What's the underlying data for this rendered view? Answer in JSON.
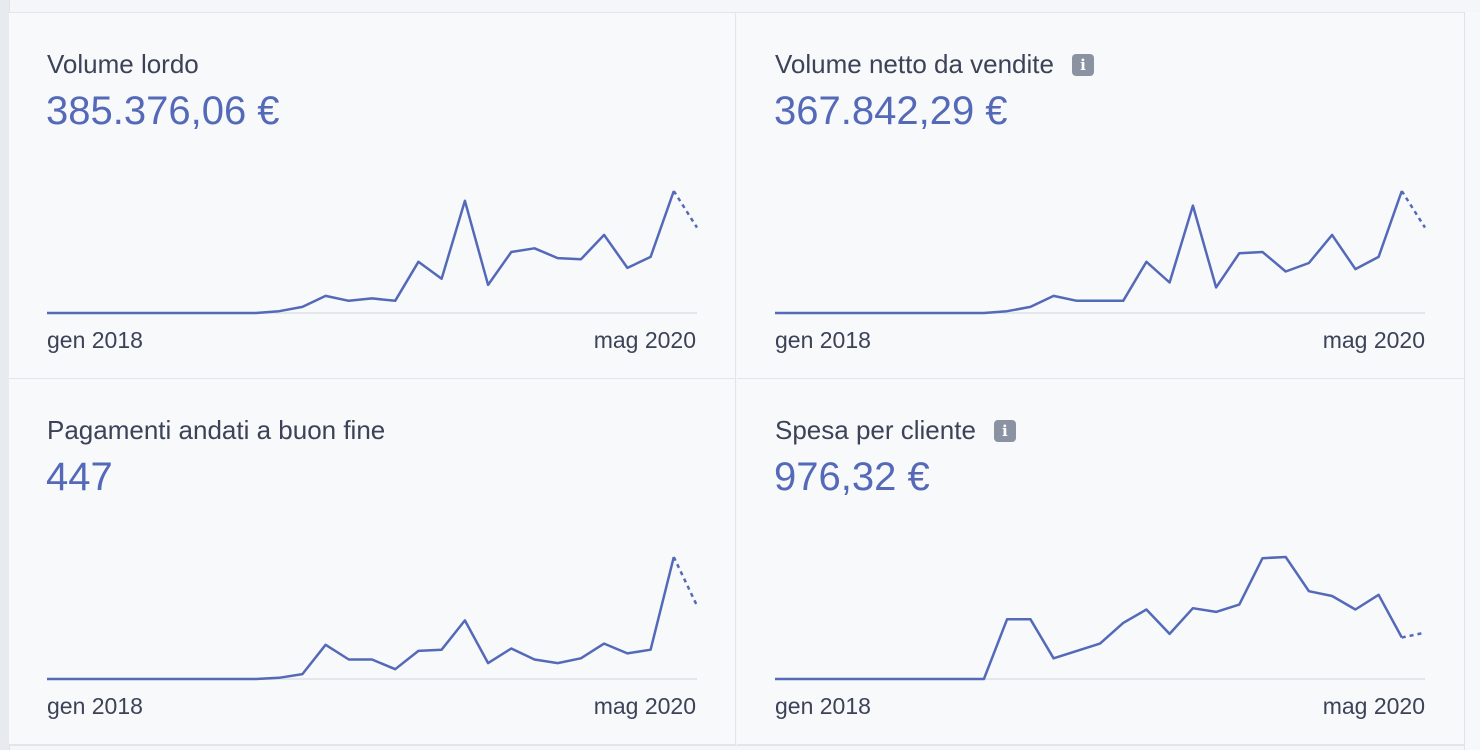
{
  "cards": [
    {
      "title": "Volume lordo",
      "value": "385.376,06 €",
      "info": false
    },
    {
      "title": "Volume netto da vendite",
      "value": "367.842,29 €",
      "info": true
    },
    {
      "title": "Pagamenti andati a buon fine",
      "value": "447",
      "info": false
    },
    {
      "title": "Spesa per cliente",
      "value": "976,32 €",
      "info": true
    }
  ],
  "info_glyph": "i",
  "colors": {
    "line": "#5469b8",
    "value": "#5469b8",
    "baseline": "#e3e6ea",
    "text": "#3c4257",
    "info_icon": "#8b93a3"
  },
  "chart_data": [
    {
      "type": "line",
      "title": "Volume lordo",
      "x": [
        "gen 2018",
        "feb 2018",
        "mar 2018",
        "apr 2018",
        "mag 2018",
        "giu 2018",
        "lug 2018",
        "ago 2018",
        "set 2018",
        "ott 2018",
        "nov 2018",
        "dic 2018",
        "gen 2019",
        "feb 2019",
        "mar 2019",
        "apr 2019",
        "mag 2019",
        "giu 2019",
        "lug 2019",
        "ago 2019",
        "set 2019",
        "ott 2019",
        "nov 2019",
        "dic 2019",
        "gen 2020",
        "feb 2020",
        "mar 2020",
        "apr 2020",
        "mag 2020"
      ],
      "values": [
        0,
        0,
        0,
        0,
        0,
        0,
        0,
        0,
        0,
        0,
        1.5,
        5,
        14,
        10,
        12,
        10,
        42,
        28,
        92,
        23,
        50,
        53,
        45,
        44,
        64,
        37,
        46,
        100,
        70
      ],
      "projected_last": true,
      "tick_labels": [
        "gen 2018",
        "mag 2020"
      ],
      "ylim": [
        0,
        100
      ],
      "grid": false,
      "legend": "none"
    },
    {
      "type": "line",
      "title": "Volume netto da vendite",
      "x": [
        "gen 2018",
        "feb 2018",
        "mar 2018",
        "apr 2018",
        "mag 2018",
        "giu 2018",
        "lug 2018",
        "ago 2018",
        "set 2018",
        "ott 2018",
        "nov 2018",
        "dic 2018",
        "gen 2019",
        "feb 2019",
        "mar 2019",
        "apr 2019",
        "mag 2019",
        "giu 2019",
        "lug 2019",
        "ago 2019",
        "set 2019",
        "ott 2019",
        "nov 2019",
        "dic 2019",
        "gen 2020",
        "feb 2020",
        "mar 2020",
        "apr 2020",
        "mag 2020"
      ],
      "values": [
        0,
        0,
        0,
        0,
        0,
        0,
        0,
        0,
        0,
        0,
        1.5,
        5,
        14,
        10,
        10,
        10,
        42,
        25,
        88,
        21,
        49,
        50,
        34,
        41,
        64,
        36,
        46,
        100,
        70
      ],
      "projected_last": true,
      "tick_labels": [
        "gen 2018",
        "mag 2020"
      ],
      "ylim": [
        0,
        100
      ],
      "grid": false,
      "legend": "none"
    },
    {
      "type": "line",
      "title": "Pagamenti andati a buon fine",
      "x": [
        "gen 2018",
        "feb 2018",
        "mar 2018",
        "apr 2018",
        "mag 2018",
        "giu 2018",
        "lug 2018",
        "ago 2018",
        "set 2018",
        "ott 2018",
        "nov 2018",
        "dic 2018",
        "gen 2019",
        "feb 2019",
        "mar 2019",
        "apr 2019",
        "mag 2019",
        "giu 2019",
        "lug 2019",
        "ago 2019",
        "set 2019",
        "ott 2019",
        "nov 2019",
        "dic 2019",
        "gen 2020",
        "feb 2020",
        "mar 2020",
        "apr 2020",
        "mag 2020"
      ],
      "values": [
        0,
        0,
        0,
        0,
        0,
        0,
        0,
        0,
        0,
        0,
        1,
        4,
        28,
        16,
        16,
        8,
        23,
        24,
        48,
        13,
        25,
        16,
        13,
        17,
        29,
        21,
        24,
        100,
        60
      ],
      "projected_last": true,
      "tick_labels": [
        "gen 2018",
        "mag 2020"
      ],
      "ylim": [
        0,
        100
      ],
      "grid": false,
      "legend": "none"
    },
    {
      "type": "line",
      "title": "Spesa per cliente",
      "x": [
        "gen 2018",
        "feb 2018",
        "mar 2018",
        "apr 2018",
        "mag 2018",
        "giu 2018",
        "lug 2018",
        "ago 2018",
        "set 2018",
        "ott 2018",
        "nov 2018",
        "dic 2018",
        "gen 2019",
        "feb 2019",
        "mar 2019",
        "apr 2019",
        "mag 2019",
        "giu 2019",
        "lug 2019",
        "ago 2019",
        "set 2019",
        "ott 2019",
        "nov 2019",
        "dic 2019",
        "gen 2020",
        "feb 2020",
        "mar 2020",
        "apr 2020",
        "mag 2020"
      ],
      "values": [
        0,
        0,
        0,
        0,
        0,
        0,
        0,
        0,
        0,
        0,
        49,
        49,
        17,
        23,
        29,
        46,
        57,
        37,
        58,
        55,
        61,
        99,
        100,
        72,
        68,
        57,
        69,
        34,
        38
      ],
      "projected_last": true,
      "tick_labels": [
        "gen 2018",
        "mag 2020"
      ],
      "ylim": [
        0,
        100
      ],
      "grid": false,
      "legend": "none"
    }
  ]
}
